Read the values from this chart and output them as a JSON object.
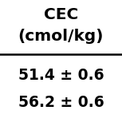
{
  "title_line1": "CEC",
  "title_line2": "(cmol/kg)",
  "row1": "51.4 ± 0.6",
  "row2": "56.2 ± 0.6",
  "bg_color": "#ffffff",
  "text_color": "#000000",
  "title_fontsize": 14.5,
  "data_fontsize": 13.5,
  "figsize": [
    1.53,
    1.53
  ],
  "dpi": 100
}
